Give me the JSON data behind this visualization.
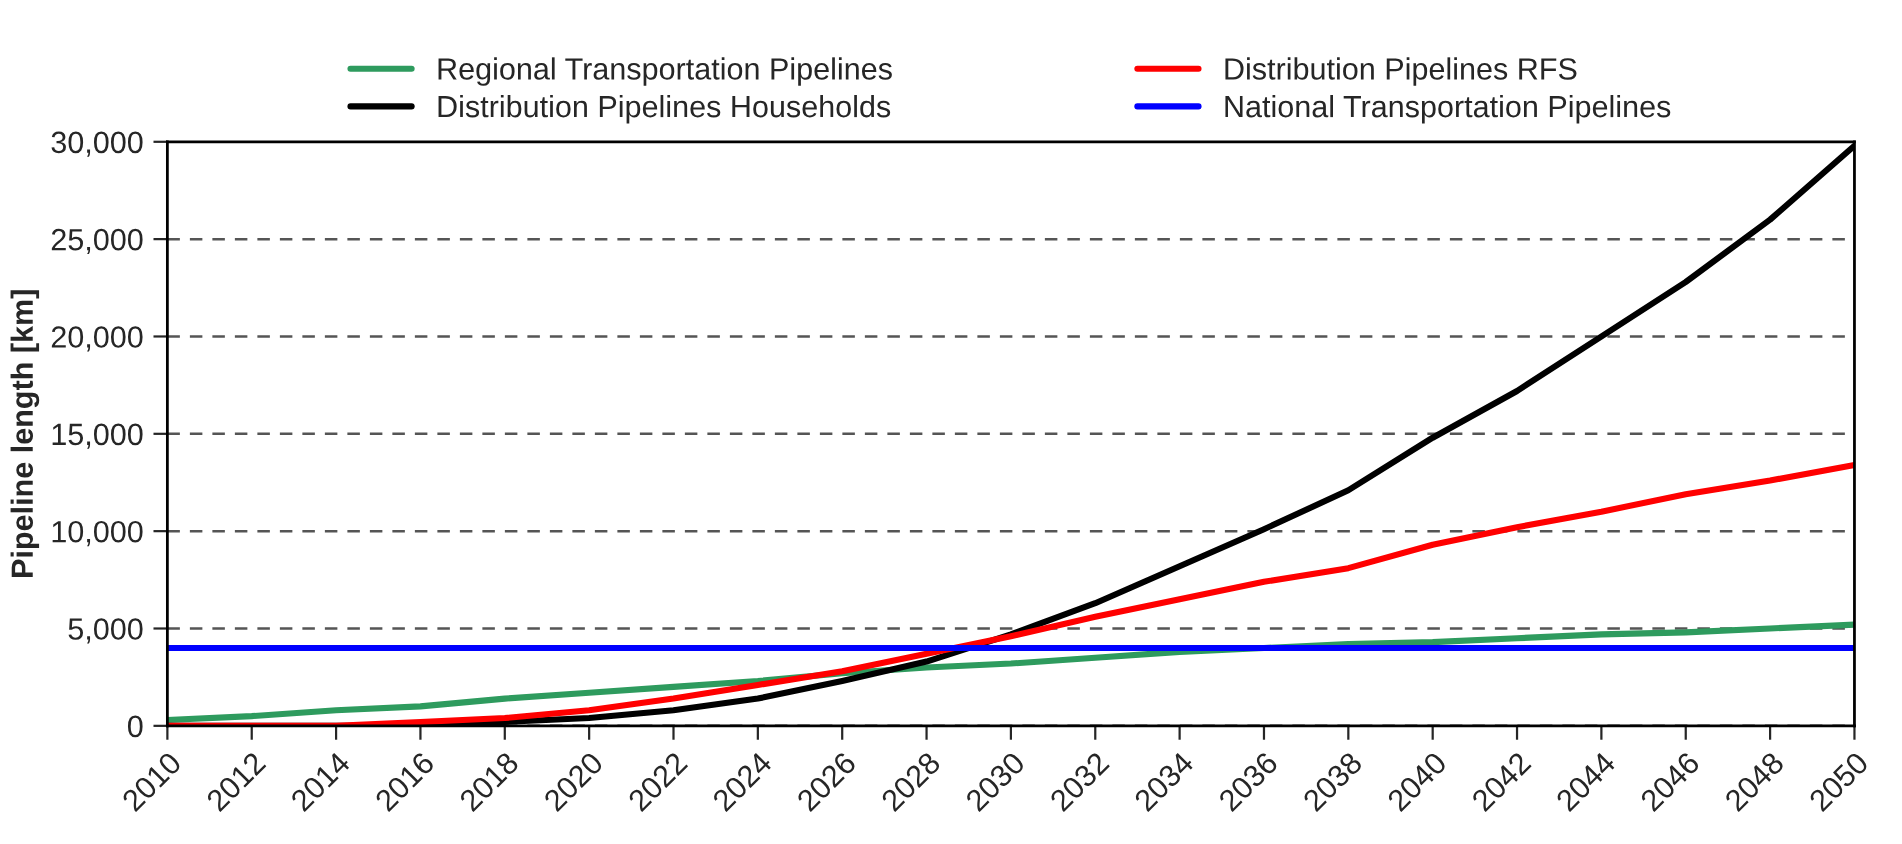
{
  "chart_data": {
    "type": "line",
    "ylabel": "Pipeline length [km]",
    "x": [
      2010,
      2012,
      2014,
      2016,
      2018,
      2020,
      2022,
      2024,
      2026,
      2028,
      2030,
      2032,
      2034,
      2036,
      2038,
      2040,
      2042,
      2044,
      2046,
      2048,
      2050
    ],
    "series": [
      {
        "name": "Regional Transportation Pipelines",
        "color": "#2e9b5e",
        "values": [
          300,
          500,
          800,
          1000,
          1400,
          1700,
          2000,
          2300,
          2700,
          3000,
          3200,
          3500,
          3800,
          4000,
          4200,
          4300,
          4500,
          4700,
          4800,
          5000,
          5200
        ]
      },
      {
        "name": "Distribution Pipelines Households",
        "color": "#000000",
        "values": [
          0,
          0,
          0,
          0,
          200,
          400,
          800,
          1400,
          2300,
          3300,
          4700,
          6300,
          8200,
          10100,
          12100,
          14800,
          17200,
          20000,
          22800,
          26000,
          29800
        ]
      },
      {
        "name": "Distribution Pipelines RFS",
        "color": "#ff0000",
        "values": [
          0,
          0,
          0,
          200,
          400,
          800,
          1400,
          2100,
          2800,
          3700,
          4600,
          5600,
          6500,
          7400,
          8100,
          9300,
          10200,
          11000,
          11900,
          12600,
          13400
        ]
      },
      {
        "name": "National Transportation Pipelines",
        "color": "#0000ff",
        "values": [
          4000,
          4000,
          4000,
          4000,
          4000,
          4000,
          4000,
          4000,
          4000,
          4000,
          4000,
          4000,
          4000,
          4000,
          4000,
          4000,
          4000,
          4000,
          4000,
          4000,
          4000
        ]
      }
    ],
    "xlim": [
      2010,
      2050
    ],
    "xticks": [
      2010,
      2012,
      2014,
      2016,
      2018,
      2020,
      2022,
      2024,
      2026,
      2028,
      2030,
      2032,
      2034,
      2036,
      2038,
      2040,
      2042,
      2044,
      2046,
      2048,
      2050
    ],
    "ylim": [
      0,
      30000
    ],
    "yticks": [
      {
        "value": 0,
        "label": "0"
      },
      {
        "value": 5000,
        "label": "5,000"
      },
      {
        "value": 10000,
        "label": "10,000"
      },
      {
        "value": 15000,
        "label": "15,000"
      },
      {
        "value": 20000,
        "label": "20,000"
      },
      {
        "value": 25000,
        "label": "25,000"
      },
      {
        "value": 30000,
        "label": "30,000"
      }
    ],
    "grid": "y",
    "legend": "top",
    "line_style": "solid",
    "marker": "none"
  }
}
